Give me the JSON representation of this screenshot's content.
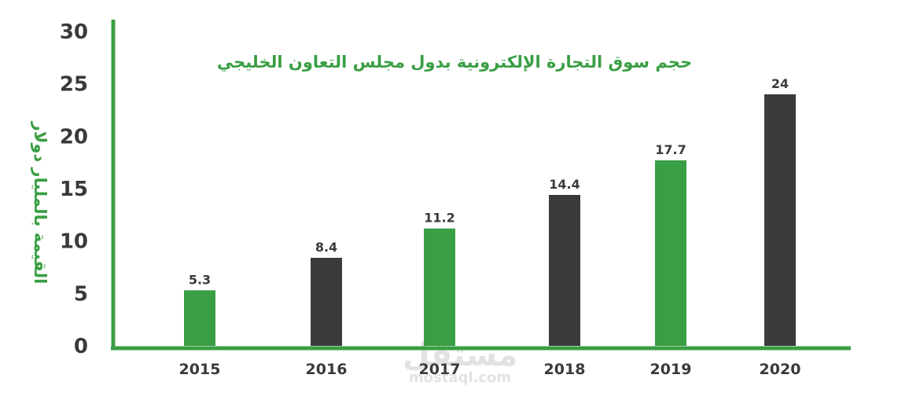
{
  "colors": {
    "green": "#3a9e44",
    "dark": "#3b3b3b",
    "axis": "#3a9e44",
    "text": "#3a3a3a"
  },
  "watermark": {
    "main": "مستقل",
    "sub": "mostaql.com"
  },
  "chart_data": {
    "type": "bar",
    "title": "حجم سوق التجارة الإلكترونية بدول مجلس التعاون الخليجي",
    "xlabel": "",
    "ylabel": "القيمة بالمليار دولار",
    "categories": [
      "2015",
      "2016",
      "2017",
      "2018",
      "2019",
      "2020"
    ],
    "values": [
      5.3,
      8.4,
      11.2,
      14.4,
      17.7,
      24
    ],
    "value_labels": [
      "5.3",
      "8.4",
      "11.2",
      "14.4",
      "17.7",
      "24"
    ],
    "bar_colors": [
      "#3a9e44",
      "#3b3b3b",
      "#3a9e44",
      "#3b3b3b",
      "#3a9e44",
      "#3b3b3b"
    ],
    "ylim": [
      0,
      30
    ],
    "yticks": [
      0,
      5,
      10,
      15,
      20,
      25,
      30
    ],
    "grid": false,
    "legend": "none"
  }
}
